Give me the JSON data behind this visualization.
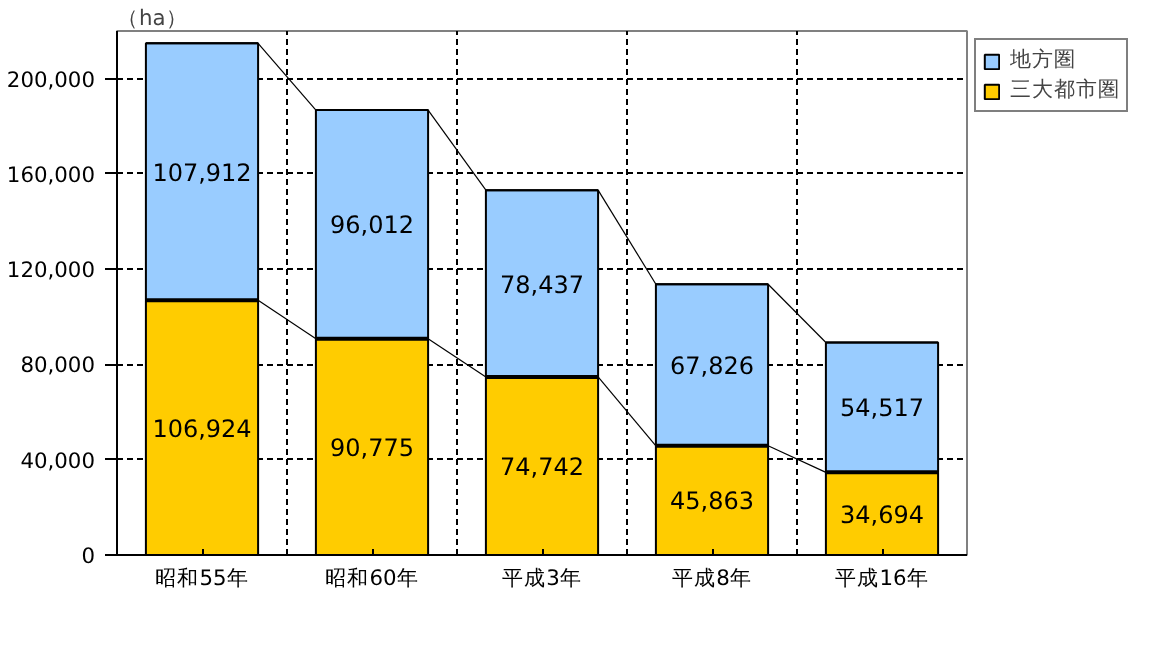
{
  "chart_data": {
    "type": "bar",
    "stacked": true,
    "ylabel": "（ha）",
    "categories": [
      "昭和55年",
      "昭和60年",
      "平成3年",
      "平成8年",
      "平成16年"
    ],
    "series": [
      {
        "name": "三大都市圏",
        "color": "#ffcc00",
        "values": [
          106924,
          90775,
          74742,
          45863,
          34694
        ],
        "value_labels": [
          "106,924",
          "90,775",
          "74,742",
          "45,863",
          "34,694"
        ]
      },
      {
        "name": "地方圏",
        "color": "#99ccff",
        "values": [
          107912,
          96012,
          78437,
          67826,
          54517
        ],
        "value_labels": [
          "107,912",
          "96,012",
          "78,437",
          "67,826",
          "54,517"
        ]
      }
    ],
    "ylim": [
      0,
      220000
    ],
    "yticks": [
      0,
      {
        "value": 40000,
        "label": "40,000"
      },
      {
        "value": 80000,
        "label": "80,000"
      },
      {
        "value": 120000,
        "label": "120,000"
      },
      {
        "value": 160000,
        "label": "160,000"
      },
      {
        "value": 200000,
        "label": "200,000"
      }
    ],
    "grid": true,
    "legend": "right"
  }
}
